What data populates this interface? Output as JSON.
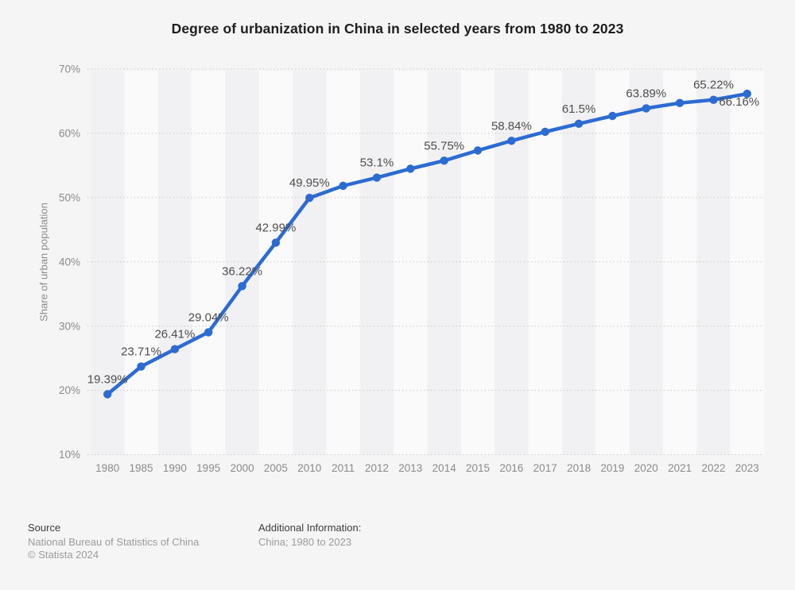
{
  "title": "Degree of urbanization in China in selected years from 1980 to 2023",
  "chart_data": {
    "type": "line",
    "x": [
      1980,
      1985,
      1990,
      1995,
      2000,
      2005,
      2010,
      2011,
      2012,
      2013,
      2014,
      2015,
      2016,
      2017,
      2018,
      2019,
      2020,
      2021,
      2022,
      2023
    ],
    "series": [
      {
        "name": "Share of urban population",
        "values": [
          19.39,
          23.71,
          26.41,
          29.04,
          36.22,
          42.99,
          49.95,
          51.83,
          53.1,
          54.49,
          55.75,
          57.33,
          58.84,
          60.24,
          61.5,
          62.71,
          63.89,
          64.72,
          65.22,
          66.16
        ]
      }
    ],
    "point_labels": [
      "19.39%",
      "23.71%",
      "26.41%",
      "29.04%",
      "36.22%",
      "42.99%",
      "49.95%",
      null,
      "53.1%",
      null,
      "55.75%",
      null,
      "58.84%",
      null,
      "61.5%",
      null,
      "63.89%",
      null,
      "65.22%",
      "66.16%"
    ],
    "label_overrides": {
      "19": {
        "dx": -10,
        "dy": 15
      }
    },
    "title": "Degree of urbanization in China in selected years from 1980 to 2023",
    "xlabel": "",
    "ylabel": "Share of urban population",
    "ylim": [
      10,
      70
    ],
    "yticks": [
      10,
      20,
      30,
      40,
      50,
      60,
      70
    ],
    "ytick_suffix": "%",
    "grid": "horizontal-dotted",
    "legend": "none",
    "line_color": "#2c6bd2",
    "band_colors": [
      "#f1f1f3",
      "#fafafb"
    ],
    "gridline_color": "#c9c9c9"
  },
  "footer": {
    "source_heading": "Source",
    "source_line1": "National Bureau of Statistics of China",
    "source_line2": "© Statista 2024",
    "additional_heading": "Additional Information:",
    "additional_line1": "China; 1980 to 2023"
  }
}
